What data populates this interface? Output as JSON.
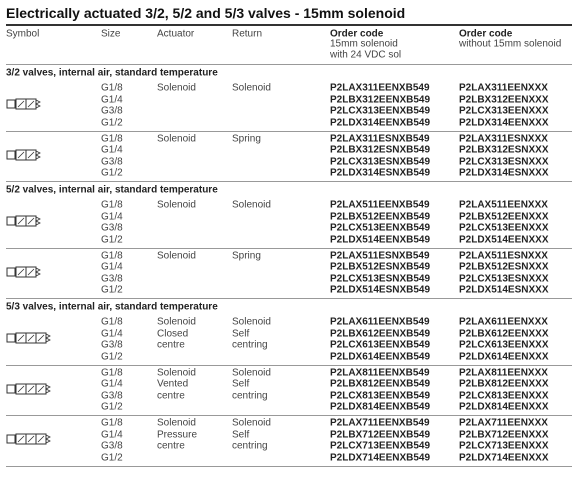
{
  "title": "Electrically actuated 3/2, 5/2 and 5/3 valves - 15mm solenoid",
  "columns": {
    "symbol": "Symbol",
    "size": "Size",
    "actuator": "Actuator",
    "return": "Return",
    "order_code": {
      "label": "Order code",
      "lines": [
        "15mm solenoid",
        "with 24 VDC sol"
      ]
    },
    "order_code_without": {
      "label": "Order code",
      "lines": [
        "without 15mm solenoid"
      ]
    }
  },
  "sections": [
    {
      "heading": "3/2 valves, internal air, standard temperature",
      "groups": [
        {
          "actuator": [
            "Solenoid"
          ],
          "return": [
            "Solenoid"
          ],
          "rows": [
            {
              "size": "G1/8",
              "code": "P2LAX311EENXB549",
              "code_without": "P2LAX311EENXXX"
            },
            {
              "size": "G1/4",
              "code": "P2LBX312EENXB549",
              "code_without": "P2LBX312EENXXX"
            },
            {
              "size": "G3/8",
              "code": "P2LCX313EENXB549",
              "code_without": "P2LCX313EENXXX"
            },
            {
              "size": "G1/2",
              "code": "P2LDX314EENXB549",
              "code_without": "P2LDX314EENXXX"
            }
          ]
        },
        {
          "actuator": [
            "Solenoid"
          ],
          "return": [
            "Spring"
          ],
          "rows": [
            {
              "size": "G1/8",
              "code": "P2LAX311ESNXB549",
              "code_without": "P2LAX311ESNXXX"
            },
            {
              "size": "G1/4",
              "code": "P2LBX312ESNXB549",
              "code_without": "P2LBX312ESNXXX"
            },
            {
              "size": "G3/8",
              "code": "P2LCX313ESNXB549",
              "code_without": "P2LCX313ESNXXX"
            },
            {
              "size": "G1/2",
              "code": "P2LDX314ESNXB549",
              "code_without": "P2LDX314ESNXXX"
            }
          ]
        }
      ]
    },
    {
      "heading": "5/2 valves, internal air, standard temperature",
      "groups": [
        {
          "actuator": [
            "Solenoid"
          ],
          "return": [
            "Solenoid"
          ],
          "rows": [
            {
              "size": "G1/8",
              "code": "P2LAX511EENXB549",
              "code_without": "P2LAX511EENXXX"
            },
            {
              "size": "G1/4",
              "code": "P2LBX512EENXB549",
              "code_without": "P2LBX512EENXXX"
            },
            {
              "size": "G3/8",
              "code": "P2LCX513EENXB549",
              "code_without": "P2LCX513EENXXX"
            },
            {
              "size": "G1/2",
              "code": "P2LDX514EENXB549",
              "code_without": "P2LDX514EENXXX"
            }
          ]
        },
        {
          "actuator": [
            "Solenoid"
          ],
          "return": [
            "Spring"
          ],
          "rows": [
            {
              "size": "G1/8",
              "code": "P2LAX511ESNXB549",
              "code_without": "P2LAX511ESNXXX"
            },
            {
              "size": "G1/4",
              "code": "P2LBX512ESNXB549",
              "code_without": "P2LBX512ESNXXX"
            },
            {
              "size": "G3/8",
              "code": "P2LCX513ESNXB549",
              "code_without": "P2LCX513ESNXXX"
            },
            {
              "size": "G1/2",
              "code": "P2LDX514ESNXB549",
              "code_without": "P2LDX514ESNXXX"
            }
          ]
        }
      ]
    },
    {
      "heading": "5/3 valves, internal air, standard temperature",
      "groups": [
        {
          "actuator": [
            "Solenoid",
            "Closed",
            "centre"
          ],
          "return": [
            "Solenoid",
            "Self",
            "centring"
          ],
          "rows": [
            {
              "size": "G1/8",
              "code": "P2LAX611EENXB549",
              "code_without": "P2LAX611EENXXX"
            },
            {
              "size": "G1/4",
              "code": "P2LBX612EENXB549",
              "code_without": "P2LBX612EENXXX"
            },
            {
              "size": "G3/8",
              "code": "P2LCX613EENXB549",
              "code_without": "P2LCX613EENXXX"
            },
            {
              "size": "G1/2",
              "code": "P2LDX614EENXB549",
              "code_without": "P2LDX614EENXXX"
            }
          ]
        },
        {
          "actuator": [
            "Solenoid",
            "Vented",
            "centre"
          ],
          "return": [
            "Solenoid",
            "Self",
            "centring"
          ],
          "rows": [
            {
              "size": "G1/8",
              "code": "P2LAX811EENXB549",
              "code_without": "P2LAX811EENXXX"
            },
            {
              "size": "G1/4",
              "code": "P2LBX812EENXB549",
              "code_without": "P2LBX812EENXXX"
            },
            {
              "size": "G3/8",
              "code": "P2LCX813EENXB549",
              "code_without": "P2LCX813EENXXX"
            },
            {
              "size": "G1/2",
              "code": "P2LDX814EENXB549",
              "code_without": "P2LDX814EENXXX"
            }
          ]
        },
        {
          "actuator": [
            "Solenoid",
            "Pressure",
            "centre"
          ],
          "return": [
            "Solenoid",
            "Self",
            "centring"
          ],
          "rows": [
            {
              "size": "G1/8",
              "code": "P2LAX711EENXB549",
              "code_without": "P2LAX711EENXXX"
            },
            {
              "size": "G1/4",
              "code": "P2LBX712EENXB549",
              "code_without": "P2LBX712EENXXX"
            },
            {
              "size": "G3/8",
              "code": "P2LCX713EENXB549",
              "code_without": "P2LCX713EENXXX"
            },
            {
              "size": "G1/2",
              "code": "P2LDX714EENXB549",
              "code_without": "P2LDX714EENXXX"
            }
          ]
        }
      ]
    }
  ]
}
